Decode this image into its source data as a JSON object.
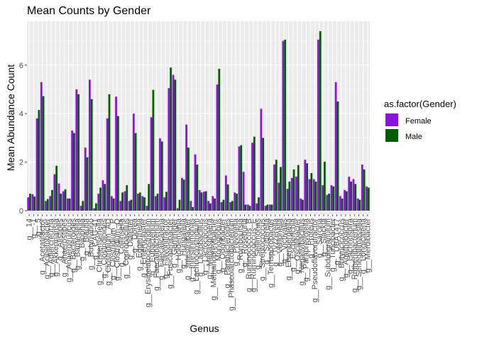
{
  "chart_data": {
    "type": "bar",
    "title": "Mean Counts by Gender",
    "xlabel": "Genus",
    "ylabel": "Mean Abundance Count",
    "ylim": [
      0,
      7.5
    ],
    "yticks": [
      0,
      2,
      4,
      6
    ],
    "grid": true,
    "legend": {
      "title": "as.factor(Gender)",
      "position": "right"
    },
    "categories": [
      "g__14",
      "g__-1",
      "g__5",
      "g__Acetatifactor",
      "g__Acinetobacter",
      "g__Adlercreutzia",
      "g__Akkermansia",
      "g__Alistipes",
      "g__Anaerostipes",
      "g__Anaerotruncus",
      "g__Bacteroides",
      "g__Barnesiella",
      "g__Bilophila",
      "g__Blautia",
      "g__Butyrivibrio",
      "g__CAG-41",
      "g__Christensenella",
      "g__Clostridioides",
      "g__Clostridium_AD",
      "g__Clostridium_P",
      "g__Clostridium_Q",
      "g__Collinsella",
      "g__Coprobacillus",
      "g__Dialister",
      "g__Dorea",
      "g__Eggerthella",
      "g__Enterocloster",
      "g__Erysipelatoclostridium",
      "g__Eubacterium",
      "g__Faecalibacterium",
      "g__Faecalicatena",
      "g__Flavonifractor",
      "g__Fusicatenibacter",
      "g__Gemmiger",
      "g__Holdemania",
      "g__Hungatella",
      "g__Intestinibacter",
      "g__Intestinimonas",
      "g__Lachnoclostridium",
      "g__Lactobacillus",
      "g__Lactococcus",
      "g__Megasphaera",
      "g__Methanobrevibacter",
      "g__Monoglobus",
      "g__Odoribacter",
      "g__Parabacteroides",
      "g__Phascolarctobacterium",
      "g__Prevotella",
      "g__Romboutsia",
      "g__Roseburia",
      "g__Ruminococcus_B",
      "g__Ruminococcus_E",
      "g__Sellimonas",
      "g__Streptococcus",
      "g__Sutterella",
      "g__Terrisporobacter",
      "g__Tyzzerella",
      "g__Veillonella",
      "g__Victivallis",
      "g__Eisenbergiella",
      "g__Escherichia",
      "g__Oscillibacter",
      "g__Negativibacillus",
      "g__Paraprevotella",
      "g__Proteus",
      "g__Pseudoflavonifractor",
      "g__Sarcina",
      "g__Slackia",
      "g__Subdoligranulum",
      "g__Turicibacter",
      "g__UBA1417",
      "g__Butyricicoccus",
      "g__Agathobacter",
      "g__Lachnospira",
      "g__Ruthenibacterium",
      "g__Senegalimassilia",
      "g__Longicatena",
      "g__Merdibacter"
    ],
    "series": [
      {
        "name": "Female",
        "color": "#8a11e0",
        "values": [
          0.55,
          0.68,
          3.8,
          5.3,
          0.4,
          0.6,
          1.5,
          1.12,
          0.8,
          0.5,
          3.3,
          5.0,
          0.2,
          2.6,
          5.4,
          0.1,
          0.7,
          1.25,
          3.8,
          0.6,
          4.7,
          0.4,
          0.8,
          0.4,
          4.0,
          0.7,
          0.6,
          0.2,
          3.85,
          0.6,
          2.98,
          0.55,
          5.05,
          5.6,
          0.1,
          1.35,
          3.55,
          0.4,
          2.32,
          0.85,
          0.78,
          0.4,
          0.6,
          5.2,
          0.35,
          1.45,
          0.35,
          0.75,
          2.65,
          1.6,
          0.25,
          2.8,
          0.3,
          4.2,
          0.2,
          0.25,
          1.9,
          1.15,
          7.0,
          0.9,
          1.35,
          1.4,
          0.5,
          2.1,
          1.3,
          1.3,
          7.05,
          1.05,
          0.65,
          1.05,
          5.3,
          0.6,
          0.85,
          1.4,
          1.3,
          0.5,
          1.9,
          1.0
        ]
      },
      {
        "name": "Male",
        "color": "#005e00",
        "values": [
          0.7,
          0.58,
          4.15,
          4.72,
          0.48,
          0.85,
          1.85,
          0.7,
          0.88,
          0.5,
          3.2,
          4.8,
          0.4,
          2.2,
          4.6,
          0.3,
          0.95,
          1.1,
          4.8,
          0.5,
          3.9,
          0.75,
          1.05,
          0.45,
          3.2,
          0.75,
          0.55,
          1.1,
          4.98,
          0.7,
          2.85,
          0.78,
          5.9,
          5.4,
          0.45,
          1.28,
          2.6,
          0.15,
          1.9,
          0.75,
          0.8,
          0.3,
          0.5,
          5.85,
          0.45,
          1.08,
          0.4,
          0.7,
          2.7,
          0.25,
          0.2,
          3.05,
          0.55,
          3.0,
          0.25,
          0.25,
          2.1,
          1.8,
          7.05,
          1.2,
          1.7,
          1.88,
          0.45,
          1.95,
          1.55,
          1.2,
          7.4,
          2.02,
          0.7,
          1.0,
          4.5,
          0.5,
          0.8,
          1.2,
          1.1,
          0.45,
          1.7,
          0.95
        ]
      }
    ]
  }
}
